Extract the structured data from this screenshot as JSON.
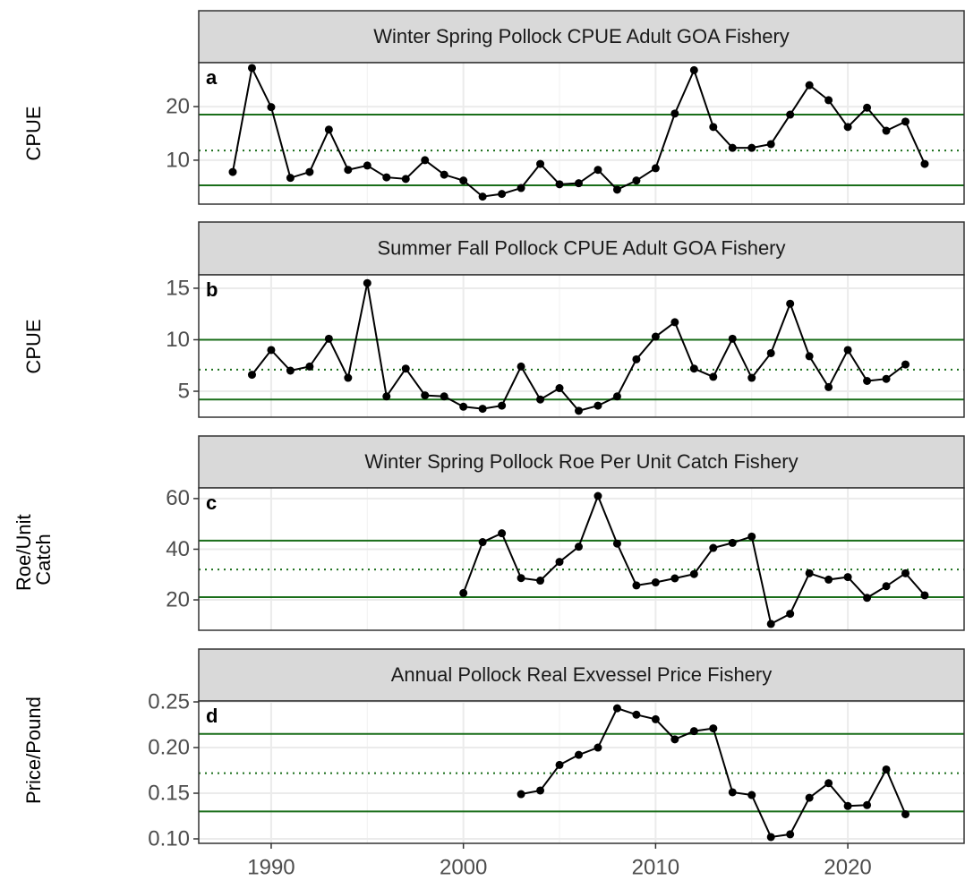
{
  "chart_data": [
    {
      "type": "line",
      "title": "Winter Spring Pollock CPUE Adult GOA Fishery",
      "panel_label": "a",
      "y_label": "CPUE",
      "x": [
        1988,
        1989,
        1990,
        1991,
        1992,
        1993,
        1994,
        1995,
        1996,
        1997,
        1998,
        1999,
        2000,
        2001,
        2002,
        2003,
        2004,
        2005,
        2006,
        2007,
        2008,
        2009,
        2010,
        2011,
        2012,
        2013,
        2014,
        2015,
        2016,
        2017,
        2018,
        2019,
        2020,
        2021,
        2022,
        2023,
        2024
      ],
      "values": [
        7.8,
        27.2,
        19.9,
        6.7,
        7.8,
        15.7,
        8.2,
        9.0,
        6.8,
        6.5,
        10.0,
        7.3,
        6.2,
        3.2,
        3.7,
        4.8,
        9.3,
        5.5,
        5.7,
        8.2,
        4.5,
        6.2,
        8.5,
        18.7,
        26.8,
        16.2,
        12.3,
        12.3,
        13.0,
        18.5,
        24.0,
        21.2,
        16.2,
        19.8,
        15.5,
        17.2,
        9.3
      ],
      "color": "#000000",
      "reference_lines": [
        {
          "value": 18.5,
          "style": "solid",
          "color": "#1a6e1a"
        },
        {
          "value": 11.8,
          "style": "dotted",
          "color": "#1a6e1a"
        },
        {
          "value": 5.3,
          "style": "solid",
          "color": "#1a6e1a"
        }
      ],
      "xlim": [
        1986.23,
        2026.05
      ],
      "xticks": [
        1990,
        2000,
        2010,
        2020
      ],
      "ylim": [
        1.8,
        28.2
      ],
      "yticks": [
        10,
        20
      ],
      "grid": true
    },
    {
      "type": "line",
      "title": "Summer Fall Pollock CPUE Adult GOA Fishery",
      "panel_label": "b",
      "y_label": "CPUE",
      "x": [
        1989,
        1990,
        1991,
        1992,
        1993,
        1994,
        1995,
        1996,
        1997,
        1998,
        1999,
        2000,
        2001,
        2002,
        2003,
        2004,
        2005,
        2006,
        2007,
        2008,
        2009,
        2010,
        2011,
        2012,
        2013,
        2014,
        2015,
        2016,
        2017,
        2018,
        2019,
        2020,
        2021,
        2022,
        2023
      ],
      "values": [
        6.6,
        9.0,
        7.0,
        7.4,
        10.1,
        6.3,
        15.5,
        4.5,
        7.2,
        4.6,
        4.5,
        3.5,
        3.3,
        3.6,
        7.4,
        4.2,
        5.3,
        3.1,
        3.6,
        4.5,
        8.1,
        10.3,
        11.7,
        7.2,
        6.4,
        10.1,
        6.3,
        8.7,
        13.5,
        8.4,
        5.4,
        9.0,
        6.0,
        6.2,
        7.6
      ],
      "color": "#000000",
      "reference_lines": [
        {
          "value": 10.0,
          "style": "solid",
          "color": "#1a6e1a"
        },
        {
          "value": 7.1,
          "style": "dotted",
          "color": "#1a6e1a"
        },
        {
          "value": 4.2,
          "style": "solid",
          "color": "#1a6e1a"
        }
      ],
      "xlim": [
        1986.23,
        2026.05
      ],
      "xticks": [
        1990,
        2000,
        2010,
        2020
      ],
      "ylim": [
        2.48,
        16.3
      ],
      "yticks": [
        5,
        10,
        15
      ],
      "grid": true
    },
    {
      "type": "line",
      "title": "Winter Spring Pollock Roe Per Unit Catch Fishery",
      "panel_label": "c",
      "y_label": "Roe/Unit Catch",
      "x": [
        2000,
        2001,
        2002,
        2003,
        2004,
        2005,
        2006,
        2007,
        2008,
        2009,
        2010,
        2011,
        2012,
        2013,
        2014,
        2015,
        2016,
        2017,
        2018,
        2019,
        2020,
        2021,
        2022,
        2023,
        2024
      ],
      "values": [
        22.7,
        42.8,
        46.3,
        28.6,
        27.6,
        35.0,
        41.0,
        61.0,
        42.2,
        25.7,
        26.9,
        28.5,
        30.2,
        40.5,
        42.5,
        45.0,
        10.5,
        14.5,
        30.5,
        28.0,
        29.0,
        20.8,
        25.4,
        30.5,
        21.8
      ],
      "color": "#000000",
      "reference_lines": [
        {
          "value": 43.4,
          "style": "solid",
          "color": "#1a6e1a"
        },
        {
          "value": 32.0,
          "style": "dotted",
          "color": "#1a6e1a"
        },
        {
          "value": 21.1,
          "style": "solid",
          "color": "#1a6e1a"
        }
      ],
      "xlim": [
        1986.23,
        2026.05
      ],
      "xticks": [
        1990,
        2000,
        2010,
        2020
      ],
      "ylim": [
        8.0,
        64.2
      ],
      "yticks": [
        20,
        40,
        60
      ],
      "grid": true
    },
    {
      "type": "line",
      "title": "Annual Pollock Real Exvessel Price Fishery",
      "panel_label": "d",
      "y_label": "Price/Pound",
      "x": [
        2003,
        2004,
        2005,
        2006,
        2007,
        2008,
        2009,
        2010,
        2011,
        2012,
        2013,
        2014,
        2015,
        2016,
        2017,
        2018,
        2019,
        2020,
        2021,
        2022,
        2023
      ],
      "values": [
        0.149,
        0.153,
        0.181,
        0.192,
        0.2,
        0.243,
        0.236,
        0.231,
        0.209,
        0.218,
        0.221,
        0.151,
        0.148,
        0.102,
        0.105,
        0.145,
        0.161,
        0.136,
        0.137,
        0.176,
        0.127
      ],
      "color": "#000000",
      "reference_lines": [
        {
          "value": 0.215,
          "style": "solid",
          "color": "#1a6e1a"
        },
        {
          "value": 0.172,
          "style": "dotted",
          "color": "#1a6e1a"
        },
        {
          "value": 0.13,
          "style": "solid",
          "color": "#1a6e1a"
        }
      ],
      "xlim": [
        1986.23,
        2026.05
      ],
      "xticks": [
        1990,
        2000,
        2010,
        2020
      ],
      "ylim": [
        0.0951,
        0.251
      ],
      "yticks": [
        {
          "value": 0.1,
          "label": "0.10"
        },
        0.15,
        {
          "value": 0.2,
          "label": "0.20"
        },
        0.25
      ],
      "grid": true
    }
  ]
}
